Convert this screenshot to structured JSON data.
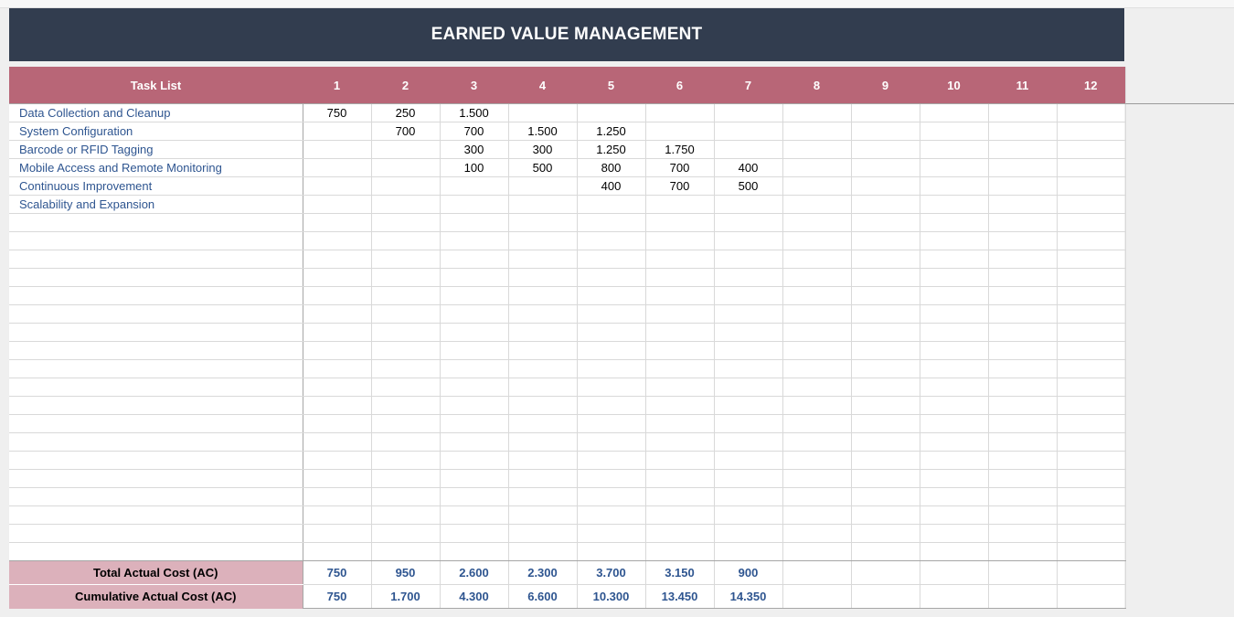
{
  "title": "EARNED VALUE MANAGEMENT",
  "header": {
    "task_list": "Task List",
    "periods": [
      "1",
      "2",
      "3",
      "4",
      "5",
      "6",
      "7",
      "8",
      "9",
      "10",
      "11",
      "12"
    ]
  },
  "rows": [
    {
      "task": "Data Collection and Cleanup",
      "values": [
        "750",
        "250",
        "1.500",
        "",
        "",
        "",
        "",
        "",
        "",
        "",
        "",
        ""
      ]
    },
    {
      "task": "System Configuration",
      "values": [
        "",
        "700",
        "700",
        "1.500",
        "1.250",
        "",
        "",
        "",
        "",
        "",
        "",
        ""
      ]
    },
    {
      "task": "Barcode or RFID Tagging",
      "values": [
        "",
        "",
        "300",
        "300",
        "1.250",
        "1.750",
        "",
        "",
        "",
        "",
        "",
        ""
      ]
    },
    {
      "task": "Mobile Access and Remote Monitoring",
      "values": [
        "",
        "",
        "100",
        "500",
        "800",
        "700",
        "400",
        "",
        "",
        "",
        "",
        ""
      ]
    },
    {
      "task": "Continuous Improvement",
      "values": [
        "",
        "",
        "",
        "",
        "400",
        "700",
        "500",
        "",
        "",
        "",
        "",
        ""
      ]
    },
    {
      "task": "Scalability and Expansion",
      "values": [
        "",
        "",
        "",
        "",
        "",
        "",
        "",
        "",
        "",
        "",
        "",
        ""
      ]
    }
  ],
  "empty_row_count": 19,
  "totals": [
    {
      "label": "Total Actual Cost (AC)",
      "values": [
        "750",
        "950",
        "2.600",
        "2.300",
        "3.700",
        "3.150",
        "900",
        "",
        "",
        "",
        "",
        ""
      ]
    },
    {
      "label": "Cumulative Actual Cost (AC)",
      "values": [
        "750",
        "1.700",
        "4.300",
        "6.600",
        "10.300",
        "13.450",
        "14.350",
        "",
        "",
        "",
        "",
        ""
      ]
    }
  ],
  "colors": {
    "title_bg": "#323d4f",
    "header_bg": "#b86677",
    "footer_label_bg": "#dcb1bb",
    "task_text": "#2e5590"
  }
}
